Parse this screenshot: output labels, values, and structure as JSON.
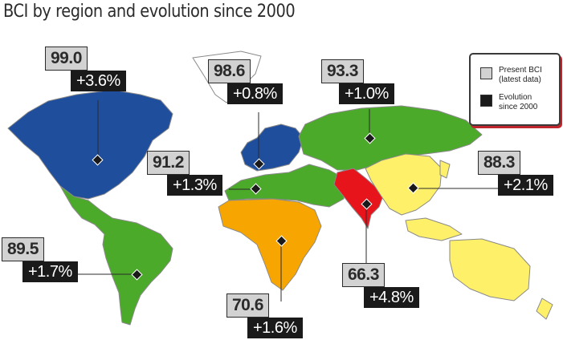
{
  "title": "BCI by region and evolution since 2000",
  "legend": {
    "present_label": "Present BCI\n(latest data)",
    "evolution_label": "Evolution\nsince 2000",
    "present_color": "#d2d2d2",
    "evolution_color": "#1a1a1a"
  },
  "regions": [
    {
      "id": "north-america",
      "bci": "99.0",
      "evolution": "+3.6%",
      "color": "#1f4e9c"
    },
    {
      "id": "europe",
      "bci": "98.6",
      "evolution": "+0.8%",
      "color": "#1f4e9c"
    },
    {
      "id": "cis",
      "bci": "93.3",
      "evolution": "+1.0%",
      "color": "#4caa2a"
    },
    {
      "id": "middle-east-north-africa",
      "bci": "91.2",
      "evolution": "+1.3%",
      "color": "#4caa2a"
    },
    {
      "id": "latin-america",
      "bci": "89.5",
      "evolution": "+1.7%",
      "color": "#4caa2a"
    },
    {
      "id": "sub-saharan-africa",
      "bci": "70.6",
      "evolution": "+1.6%",
      "color": "#f7a500"
    },
    {
      "id": "south-asia",
      "bci": "66.3",
      "evolution": "+4.8%",
      "color": "#e8141c"
    },
    {
      "id": "east-asia-pacific",
      "bci": "88.3",
      "evolution": "+2.1%",
      "color": "#fff06a"
    }
  ]
}
